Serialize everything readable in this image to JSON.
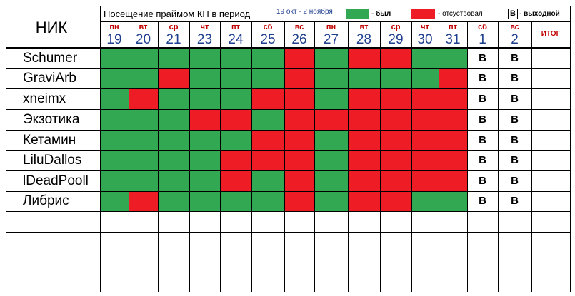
{
  "header": {
    "nik": "НИК",
    "title": "Посещение праймом КП в период",
    "period": "19 окт - 2 ноября",
    "legend_present": "- был",
    "legend_absent": "- отсуствовал",
    "legend_dayoff_letter": "В",
    "legend_dayoff": "- выходной",
    "itog": "ИТОГ"
  },
  "colors": {
    "present": "#33a852",
    "absent": "#ee1c25",
    "day_number": "#1f3f8f",
    "weekday": "#c00000"
  },
  "days": [
    {
      "wd": "пн",
      "d": "19"
    },
    {
      "wd": "вт",
      "d": "20"
    },
    {
      "wd": "ср",
      "d": "21"
    },
    {
      "wd": "чт",
      "d": "23"
    },
    {
      "wd": "пт",
      "d": "24"
    },
    {
      "wd": "сб",
      "d": "25"
    },
    {
      "wd": "вс",
      "d": "26"
    },
    {
      "wd": "пн",
      "d": "27"
    },
    {
      "wd": "вт",
      "d": "28"
    },
    {
      "wd": "ср",
      "d": "29"
    },
    {
      "wd": "чт",
      "d": "30"
    },
    {
      "wd": "пт",
      "d": "31"
    },
    {
      "wd": "сб",
      "d": "1"
    },
    {
      "wd": "вс",
      "d": "2"
    }
  ],
  "dayoff_mark": "В",
  "players": [
    {
      "name": "Schumer",
      "marks": "GGGGGGRGRRGG"
    },
    {
      "name": "GraviArb",
      "marks": "GGRGGGRGGGGR"
    },
    {
      "name": "xneimx",
      "marks": "GRGGGRRGRRRR"
    },
    {
      "name": "Экзотика",
      "marks": "GGGRRGRRRRRR"
    },
    {
      "name": "Кетамин",
      "marks": "GGGGGRRGRRRR"
    },
    {
      "name": "LiluDallos",
      "marks": "GGGGRRRGRRRR"
    },
    {
      "name": "lDeadPooll",
      "marks": "GGGGRGRGRRRR"
    },
    {
      "name": "Либрис",
      "marks": "GRGGGGRGRRGG"
    }
  ],
  "empty_rows": 3
}
